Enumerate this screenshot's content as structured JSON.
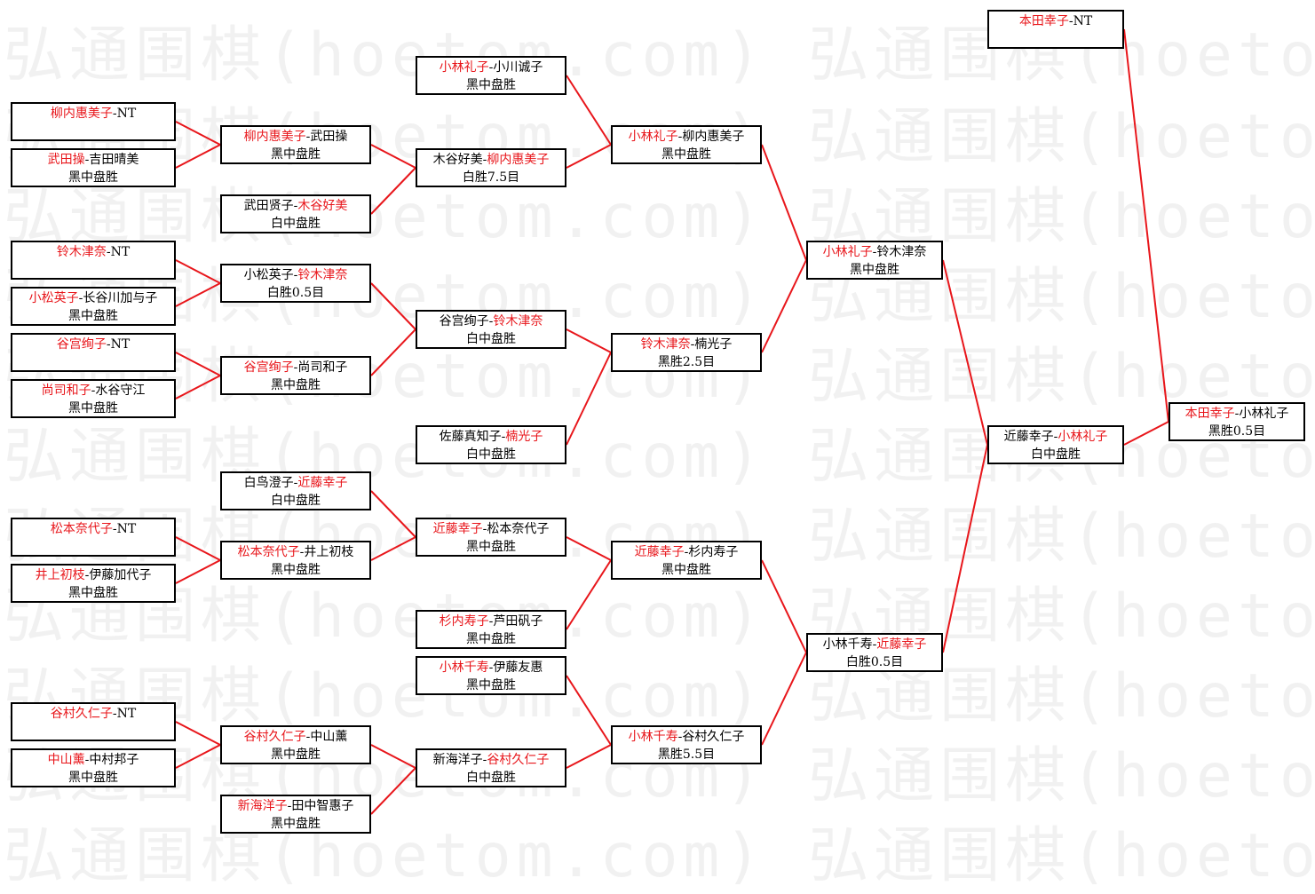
{
  "watermark": "弘通围棋(hoetom.com)",
  "colors": {
    "winner": "#e8161b",
    "line": "#e8161b",
    "border": "#000000"
  },
  "separator": "-",
  "matches": [
    {
      "id": "a1",
      "p1": "柳内惠美子",
      "p2": "NT",
      "winner": 1,
      "result": "",
      "to": "b1"
    },
    {
      "id": "a2",
      "p1": "武田操",
      "p2": "吉田晴美",
      "winner": 1,
      "result": "黑中盘胜",
      "to": "b1"
    },
    {
      "id": "a3",
      "p1": "铃木津奈",
      "p2": "NT",
      "winner": 1,
      "result": "",
      "to": "b3"
    },
    {
      "id": "a4",
      "p1": "小松英子",
      "p2": "长谷川加与子",
      "winner": 1,
      "result": "黑中盘胜",
      "to": "b3"
    },
    {
      "id": "a5",
      "p1": "谷宫绚子",
      "p2": "NT",
      "winner": 1,
      "result": "",
      "to": "b4"
    },
    {
      "id": "a6",
      "p1": "尚司和子",
      "p2": "水谷守江",
      "winner": 1,
      "result": "黑中盘胜",
      "to": "b4"
    },
    {
      "id": "a7",
      "p1": "松本奈代子",
      "p2": "NT",
      "winner": 1,
      "result": "",
      "to": "b6"
    },
    {
      "id": "a8",
      "p1": "井上初枝",
      "p2": "伊藤加代子",
      "winner": 1,
      "result": "黑中盘胜",
      "to": "b6"
    },
    {
      "id": "a9",
      "p1": "谷村久仁子",
      "p2": "NT",
      "winner": 1,
      "result": "",
      "to": "b7"
    },
    {
      "id": "a10",
      "p1": "中山薰",
      "p2": "中村邦子",
      "winner": 1,
      "result": "黑中盘胜",
      "to": "b7"
    },
    {
      "id": "b1",
      "p1": "柳内惠美子",
      "p2": "武田操",
      "winner": 1,
      "result": "黑中盘胜",
      "to": "c2"
    },
    {
      "id": "b2",
      "p1": "武田贤子",
      "p2": "木谷好美",
      "winner": 2,
      "result": "白中盘胜",
      "to": "c2"
    },
    {
      "id": "b3",
      "p1": "小松英子",
      "p2": "铃木津奈",
      "winner": 2,
      "result": "白胜0.5目",
      "to": "c3"
    },
    {
      "id": "b4",
      "p1": "谷宫绚子",
      "p2": "尚司和子",
      "winner": 1,
      "result": "黑中盘胜",
      "to": "c3"
    },
    {
      "id": "b5",
      "p1": "白鸟澄子",
      "p2": "近藤幸子",
      "winner": 2,
      "result": "白中盘胜",
      "to": "c5"
    },
    {
      "id": "b6",
      "p1": "松本奈代子",
      "p2": "井上初枝",
      "winner": 1,
      "result": "黑中盘胜",
      "to": "c5"
    },
    {
      "id": "b7",
      "p1": "谷村久仁子",
      "p2": "中山薰",
      "winner": 1,
      "result": "黑中盘胜",
      "to": "c8"
    },
    {
      "id": "b8",
      "p1": "新海洋子",
      "p2": "田中智惠子",
      "winner": 1,
      "result": "黑中盘胜",
      "to": "c8"
    },
    {
      "id": "c1",
      "p1": "小林礼子",
      "p2": "小川诚子",
      "winner": 1,
      "result": "黑中盘胜",
      "to": "d1"
    },
    {
      "id": "c2",
      "p1": "木谷好美",
      "p2": "柳内惠美子",
      "winner": 2,
      "result": "白胜7.5目",
      "to": "d1"
    },
    {
      "id": "c3",
      "p1": "谷宫绚子",
      "p2": "铃木津奈",
      "winner": 2,
      "result": "白中盘胜",
      "to": "d2"
    },
    {
      "id": "c4",
      "p1": "佐藤真知子",
      "p2": "楠光子",
      "winner": 2,
      "result": "白中盘胜",
      "to": "d2"
    },
    {
      "id": "c5",
      "p1": "近藤幸子",
      "p2": "松本奈代子",
      "winner": 1,
      "result": "黑中盘胜",
      "to": "d3"
    },
    {
      "id": "c6",
      "p1": "杉内寿子",
      "p2": "芦田矾子",
      "winner": 1,
      "result": "黑中盘胜",
      "to": "d3"
    },
    {
      "id": "c7",
      "p1": "小林千寿",
      "p2": "伊藤友惠",
      "winner": 1,
      "result": "黑中盘胜",
      "to": "d4"
    },
    {
      "id": "c8",
      "p1": "新海洋子",
      "p2": "谷村久仁子",
      "winner": 2,
      "result": "白中盘胜",
      "to": "d4"
    },
    {
      "id": "d1",
      "p1": "小林礼子",
      "p2": "柳内惠美子",
      "winner": 1,
      "result": "黑中盘胜",
      "to": "e1"
    },
    {
      "id": "d2",
      "p1": "铃木津奈",
      "p2": "楠光子",
      "winner": 1,
      "result": "黑胜2.5目",
      "to": "e1"
    },
    {
      "id": "d3",
      "p1": "近藤幸子",
      "p2": "杉内寿子",
      "winner": 1,
      "result": "黑中盘胜",
      "to": "e2"
    },
    {
      "id": "d4",
      "p1": "小林千寿",
      "p2": "谷村久仁子",
      "winner": 1,
      "result": "黑胜5.5目",
      "to": "e2"
    },
    {
      "id": "e1",
      "p1": "小林礼子",
      "p2": "铃木津奈",
      "winner": 1,
      "result": "黑中盘胜",
      "to": "f2"
    },
    {
      "id": "e2",
      "p1": "小林千寿",
      "p2": "近藤幸子",
      "winner": 2,
      "result": "白胜0.5目",
      "to": "f2"
    },
    {
      "id": "f1",
      "p1": "本田幸子",
      "p2": "NT",
      "winner": 1,
      "result": "",
      "to": "g1"
    },
    {
      "id": "f2",
      "p1": "近藤幸子",
      "p2": "小林礼子",
      "winner": 2,
      "result": "白中盘胜",
      "to": "g1"
    },
    {
      "id": "g1",
      "p1": "本田幸子",
      "p2": "小林礼子",
      "winner": 1,
      "result": "黑胜0.5目",
      "to": null
    }
  ]
}
